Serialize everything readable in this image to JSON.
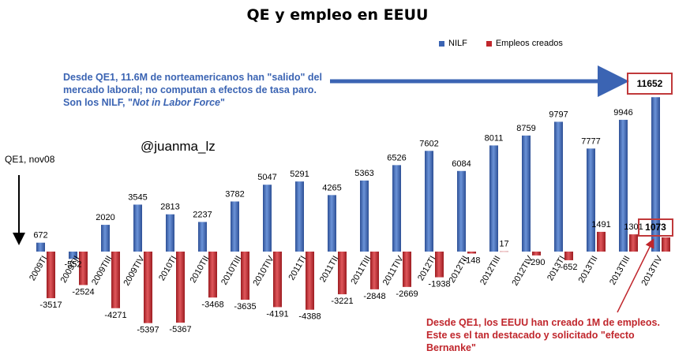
{
  "title": "QE y empleo en EEUU",
  "handle": "@juanma_lz",
  "qe1_label": "QE1, nov08",
  "annotations": {
    "nilf_prefix": "Desde QE1, 11.6M de norteamericanos han \"salido\" del mercado laboral; no computan a efectos de tasa paro. Son los NILF, \"",
    "nilf_italic": "Not in Labor Force",
    "nilf_suffix": "\"",
    "jobs": "Desde QE1, los EEUU han creado 1M de empleos. Este es el tan destacado y solicitado \"efecto Bernanke\""
  },
  "highlight": {
    "nilf_total": "11652",
    "jobs_total": "1073"
  },
  "colors": {
    "nilf": "#3b64b3",
    "jobs": "#c0262c",
    "arrow": "#3b64b3",
    "box": "#c0393b"
  },
  "chart_data": {
    "type": "bar",
    "title": "QE y empleo en EEUU",
    "categories": [
      "2009TI",
      "2009TII",
      "2009TIII",
      "2009TIV",
      "2010TI",
      "2010TII",
      "2010TIII",
      "2010TIV",
      "2011TI",
      "2011TII",
      "2011TIII",
      "2011TIV",
      "2012TI",
      "2012TII",
      "2012TIII",
      "2012TIV",
      "2013TI",
      "2013TII",
      "2013TIII",
      "2013TIV"
    ],
    "series": [
      {
        "name": "NILF",
        "values": [
          672,
          -552,
          2020,
          3545,
          2813,
          2237,
          3782,
          5047,
          5291,
          4265,
          5363,
          6526,
          7602,
          6084,
          8011,
          8759,
          9797,
          7777,
          9946,
          11652
        ]
      },
      {
        "name": "Empleos creados",
        "values": [
          -3517,
          -2524,
          -4271,
          -5397,
          -5367,
          -3468,
          -3635,
          -4191,
          -4388,
          -3221,
          -2848,
          -2669,
          -1938,
          -148,
          17,
          -290,
          -652,
          1491,
          1301,
          1073
        ]
      }
    ],
    "legend_position": "top-right",
    "grid": false
  }
}
